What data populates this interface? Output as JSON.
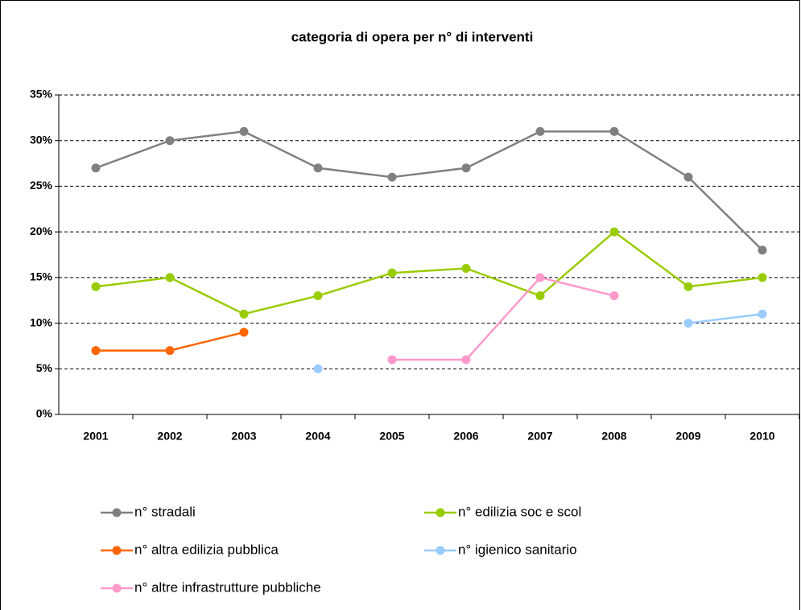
{
  "chart_data": {
    "type": "line",
    "title": "categoria di opera per n° di interventi",
    "categories": [
      "2001",
      "2002",
      "2003",
      "2004",
      "2005",
      "2006",
      "2007",
      "2008",
      "2009",
      "2010"
    ],
    "series": [
      {
        "name": "n° stradali",
        "color": "#808080",
        "values": [
          27,
          30,
          31,
          27,
          26,
          27,
          31,
          31,
          26,
          18
        ]
      },
      {
        "name": "n° edilizia soc e scol",
        "color": "#99cc00",
        "values": [
          14,
          15,
          11,
          13,
          15.5,
          16,
          13,
          20,
          14,
          15
        ]
      },
      {
        "name": "n° altra edilizia pubblica",
        "color": "#ff6600",
        "values": [
          7,
          7,
          9,
          null,
          null,
          null,
          null,
          null,
          null,
          null
        ]
      },
      {
        "name": "n° igienico sanitario",
        "color": "#99ccff",
        "values": [
          null,
          null,
          null,
          5,
          null,
          null,
          null,
          null,
          10,
          11
        ]
      },
      {
        "name": "n° altre infrastrutture pubbliche",
        "color": "#ff99cc",
        "values": [
          null,
          null,
          null,
          null,
          6,
          6,
          15,
          13,
          null,
          null
        ]
      }
    ],
    "ylim": [
      0,
      35
    ],
    "yticks": [
      {
        "value": 0,
        "label": "0%"
      },
      {
        "value": 5,
        "label": "5%"
      },
      {
        "value": 10,
        "label": "10%"
      },
      {
        "value": 15,
        "label": "15%"
      },
      {
        "value": 20,
        "label": "20%"
      },
      {
        "value": 25,
        "label": "25%"
      },
      {
        "value": 30,
        "label": "30%"
      },
      {
        "value": 35,
        "label": "35%"
      }
    ],
    "grid": true,
    "legend": "bottom"
  }
}
